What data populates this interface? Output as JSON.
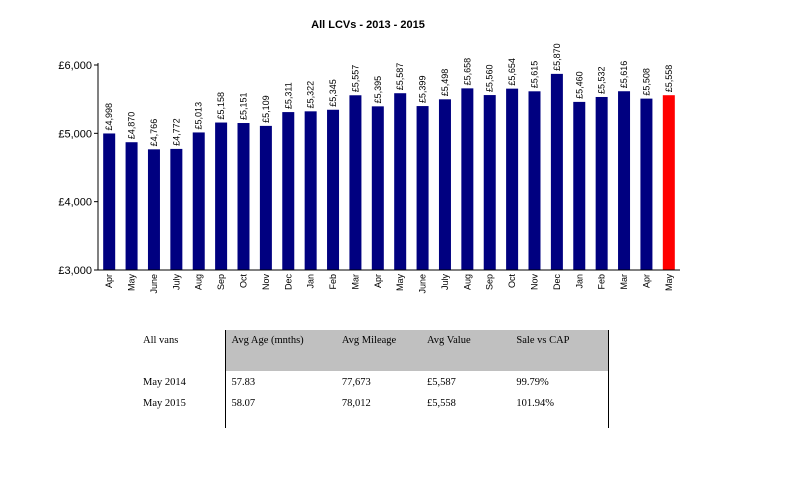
{
  "chart_data": {
    "type": "bar",
    "title": "All LCVs - 2013 - 2015",
    "xlabel": "",
    "ylabel": "",
    "ylim": [
      3000,
      6000
    ],
    "yticks": [
      3000,
      4000,
      5000,
      6000
    ],
    "ytick_labels": [
      "£3,000",
      "£4,000",
      "£5,000",
      "£6,000"
    ],
    "categories": [
      "Apr",
      "May",
      "June",
      "July",
      "Aug",
      "Sep",
      "Oct",
      "Nov",
      "Dec",
      "Jan",
      "Feb",
      "Mar",
      "Apr",
      "May",
      "June",
      "July",
      "Aug",
      "Sep",
      "Oct",
      "Nov",
      "Dec",
      "Jan",
      "Feb",
      "Mar",
      "Apr",
      "May"
    ],
    "values": [
      4998,
      4870,
      4766,
      4772,
      5013,
      5158,
      5151,
      5109,
      5311,
      5322,
      5345,
      5557,
      5395,
      5587,
      5399,
      5498,
      5658,
      5560,
      5654,
      5615,
      5870,
      5460,
      5532,
      5616,
      5508,
      5558
    ],
    "value_labels": [
      "£4,998",
      "£4,870",
      "£4,766",
      "£4,772",
      "£5,013",
      "£5,158",
      "£5,151",
      "£5,109",
      "£5,311",
      "£5,322",
      "£5,345",
      "£5,557",
      "£5,395",
      "£5,587",
      "£5,399",
      "£5,498",
      "£5,658",
      "£5,560",
      "£5,654",
      "£5,615",
      "£5,870",
      "£5,460",
      "£5,532",
      "£5,616",
      "£5,508",
      "£5,558"
    ],
    "highlight_index": 25,
    "colors": {
      "bar": "#000080",
      "highlight": "#ff0000",
      "axis": "#000000"
    }
  },
  "table": {
    "headers": [
      "All vans",
      "Avg Age (mnths)",
      "Avg Mileage",
      "Avg Value",
      "Sale vs CAP"
    ],
    "rows": [
      [
        "May 2014",
        "57.83",
        "77,673",
        "£5,587",
        "99.79%"
      ],
      [
        "May 2015",
        "58.07",
        "78,012",
        "£5,558",
        "101.94%"
      ]
    ]
  }
}
